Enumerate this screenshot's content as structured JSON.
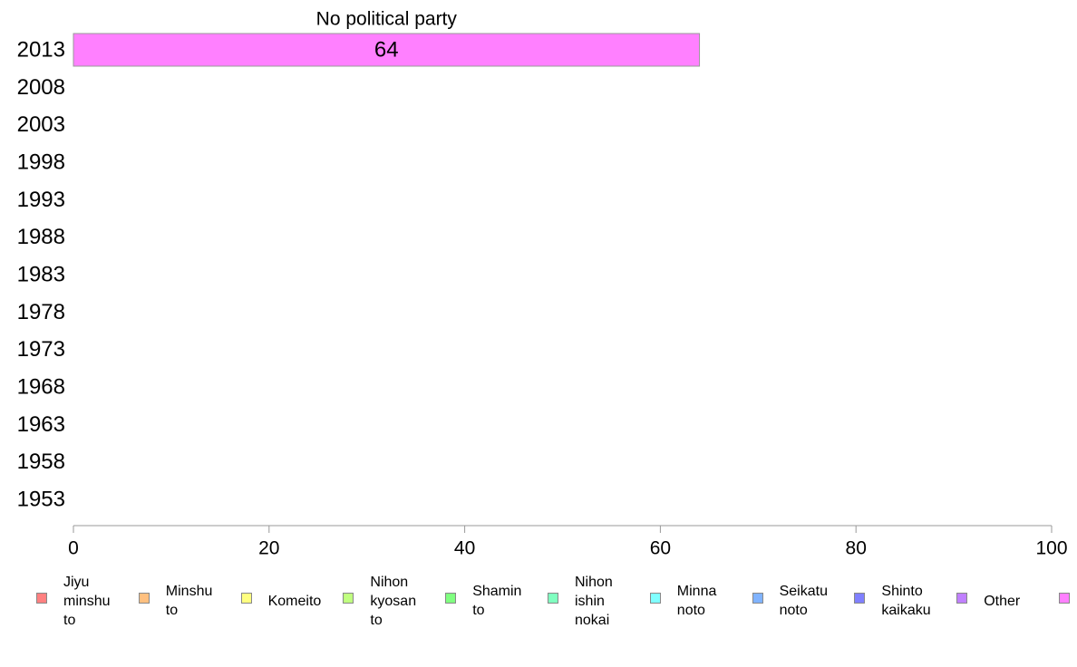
{
  "chart_data": {
    "type": "bar",
    "orientation": "horizontal",
    "stacked": true,
    "categories": [
      "1953",
      "1958",
      "1963",
      "1968",
      "1973",
      "1978",
      "1983",
      "1988",
      "1993",
      "1998",
      "2003",
      "2008",
      "2013"
    ],
    "series": [
      {
        "name": "Jiyu minshu to",
        "color": "#ff8080",
        "values": [
          null,
          null,
          null,
          null,
          null,
          null,
          null,
          null,
          null,
          null,
          null,
          null,
          null
        ]
      },
      {
        "name": "Minshu to",
        "color": "#ffc080",
        "values": [
          null,
          null,
          null,
          null,
          null,
          null,
          null,
          null,
          null,
          null,
          null,
          null,
          null
        ]
      },
      {
        "name": "Komeito",
        "color": "#ffff80",
        "values": [
          null,
          null,
          null,
          null,
          null,
          null,
          null,
          null,
          null,
          null,
          null,
          null,
          null
        ]
      },
      {
        "name": "Nihon kyosan to",
        "color": "#c0ff80",
        "values": [
          null,
          null,
          null,
          null,
          null,
          null,
          null,
          null,
          null,
          null,
          null,
          null,
          null
        ]
      },
      {
        "name": "Shamin to",
        "color": "#80ff80",
        "values": [
          null,
          null,
          null,
          null,
          null,
          null,
          null,
          null,
          null,
          null,
          null,
          null,
          null
        ]
      },
      {
        "name": "Nihon ishin nokai",
        "color": "#80ffc0",
        "values": [
          null,
          null,
          null,
          null,
          null,
          null,
          null,
          null,
          null,
          null,
          null,
          null,
          null
        ]
      },
      {
        "name": "Minna noto",
        "color": "#80ffff",
        "values": [
          null,
          null,
          null,
          null,
          null,
          null,
          null,
          null,
          null,
          null,
          null,
          null,
          null
        ]
      },
      {
        "name": "Seikatu noto",
        "color": "#80b3ff",
        "values": [
          null,
          null,
          null,
          null,
          null,
          null,
          null,
          null,
          null,
          null,
          null,
          null,
          null
        ]
      },
      {
        "name": "Shinto kaikaku",
        "color": "#8080ff",
        "values": [
          null,
          null,
          null,
          null,
          null,
          null,
          null,
          null,
          null,
          null,
          null,
          null,
          null
        ]
      },
      {
        "name": "Other",
        "color": "#c080ff",
        "values": [
          null,
          null,
          null,
          null,
          null,
          null,
          null,
          null,
          null,
          null,
          null,
          null,
          null
        ]
      },
      {
        "name": "No political party",
        "color": "#ff80ff",
        "values": [
          null,
          null,
          null,
          null,
          null,
          null,
          null,
          null,
          null,
          null,
          null,
          null,
          64
        ]
      }
    ],
    "data_labels": {
      "2013": "64"
    },
    "annotation": "No political party",
    "xlim": [
      0,
      100
    ],
    "xticks": [
      0,
      20,
      40,
      60,
      80,
      100
    ],
    "grid": false,
    "legend_position": "bottom"
  },
  "legend": {
    "items": [
      {
        "label": "Jiyu minshu to",
        "color": "#ff8080"
      },
      {
        "label": "Minshu to",
        "color": "#ffc080"
      },
      {
        "label": "Komeito",
        "color": "#ffff80"
      },
      {
        "label": "Nihon kyosan to",
        "color": "#c0ff80"
      },
      {
        "label": "Shamin to",
        "color": "#80ff80"
      },
      {
        "label": "Nihon ishin nokai",
        "color": "#80ffc0"
      },
      {
        "label": "Minna noto",
        "color": "#80ffff"
      },
      {
        "label": "Seikatu noto",
        "color": "#80b3ff"
      },
      {
        "label": "Shinto kaikaku",
        "color": "#8080ff"
      },
      {
        "label": "Other",
        "color": "#c080ff"
      },
      {
        "label": "",
        "color": "#ff80ff"
      }
    ]
  }
}
